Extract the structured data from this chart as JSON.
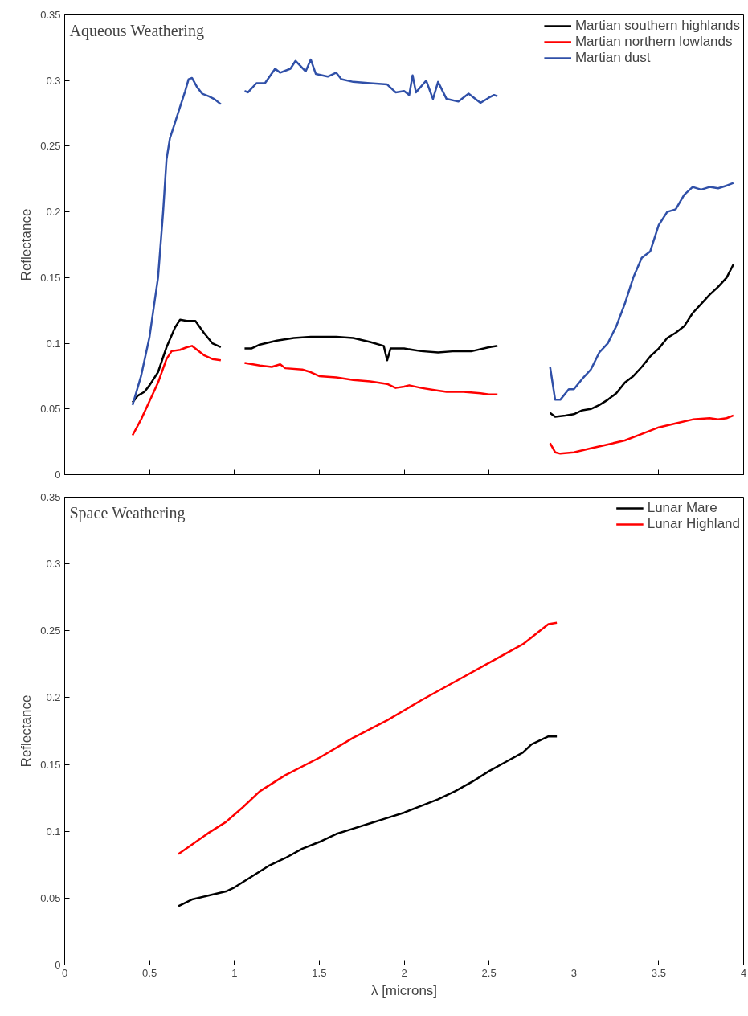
{
  "chart_data": [
    {
      "type": "line",
      "title": "Aqueous Weathering",
      "ylabel": "Reflectance",
      "xlim": [
        0,
        4
      ],
      "ylim": [
        0,
        0.35
      ],
      "xticks": [
        0,
        0.5,
        1,
        1.5,
        2,
        2.5,
        3,
        3.5,
        4
      ],
      "yticks": [
        0,
        0.05,
        0.1,
        0.15,
        0.2,
        0.25,
        0.3,
        0.35
      ],
      "tick_labels": "y",
      "grid": false,
      "legend": "top right",
      "marker": "none",
      "line_style": "solid",
      "series": [
        {
          "name": "Martian southern highlands",
          "color": "#000000",
          "x": [
            0.4,
            0.43,
            0.47,
            0.5,
            0.55,
            0.6,
            0.65,
            0.68,
            0.72,
            0.77,
            0.82,
            0.87,
            0.92,
            0.99,
            1.06,
            1.1,
            1.15,
            1.25,
            1.35,
            1.45,
            1.6,
            1.7,
            1.8,
            1.88,
            1.9,
            1.92,
            2.0,
            2.1,
            2.2,
            2.3,
            2.4,
            2.5,
            2.55,
            2.7,
            2.86,
            2.89,
            2.95,
            3.0,
            3.05,
            3.1,
            3.15,
            3.2,
            3.25,
            3.3,
            3.35,
            3.4,
            3.45,
            3.5,
            3.55,
            3.6,
            3.65,
            3.7,
            3.75,
            3.8,
            3.85,
            3.9,
            3.94
          ],
          "values": [
            0.055,
            0.06,
            0.063,
            0.068,
            0.078,
            0.097,
            0.112,
            0.118,
            0.117,
            0.117,
            0.108,
            0.1,
            0.097,
            null,
            0.096,
            0.096,
            0.099,
            0.102,
            0.104,
            0.105,
            0.105,
            0.104,
            0.101,
            0.098,
            0.087,
            0.096,
            0.096,
            0.094,
            0.093,
            0.094,
            0.094,
            0.097,
            0.098,
            null,
            0.047,
            0.044,
            0.045,
            0.046,
            0.049,
            0.05,
            0.053,
            0.057,
            0.062,
            0.07,
            0.075,
            0.082,
            0.09,
            0.096,
            0.104,
            0.108,
            0.113,
            0.123,
            0.13,
            0.137,
            0.143,
            0.15,
            0.16
          ]
        },
        {
          "name": "Martian northern lowlands",
          "color": "#ff0000",
          "x": [
            0.4,
            0.45,
            0.5,
            0.55,
            0.6,
            0.63,
            0.68,
            0.72,
            0.75,
            0.78,
            0.82,
            0.87,
            0.92,
            0.99,
            1.06,
            1.15,
            1.22,
            1.27,
            1.3,
            1.4,
            1.45,
            1.5,
            1.6,
            1.7,
            1.8,
            1.9,
            1.95,
            2.0,
            2.03,
            2.1,
            2.2,
            2.25,
            2.35,
            2.45,
            2.5,
            2.55,
            2.7,
            2.86,
            2.89,
            2.92,
            3.0,
            3.1,
            3.2,
            3.3,
            3.4,
            3.5,
            3.6,
            3.7,
            3.8,
            3.85,
            3.9,
            3.94
          ],
          "values": [
            0.03,
            0.042,
            0.056,
            0.07,
            0.088,
            0.094,
            0.095,
            0.097,
            0.098,
            0.095,
            0.091,
            0.088,
            0.087,
            null,
            0.085,
            0.083,
            0.082,
            0.084,
            0.081,
            0.08,
            0.078,
            0.075,
            0.074,
            0.072,
            0.071,
            0.069,
            0.066,
            0.067,
            0.068,
            0.066,
            0.064,
            0.063,
            0.063,
            0.062,
            0.061,
            0.061,
            null,
            0.024,
            0.017,
            0.016,
            0.017,
            0.02,
            0.023,
            0.026,
            0.031,
            0.036,
            0.039,
            0.042,
            0.043,
            0.042,
            0.043,
            0.045
          ]
        },
        {
          "name": "Martian dust",
          "color": "#3050a8",
          "x": [
            0.4,
            0.45,
            0.5,
            0.55,
            0.58,
            0.6,
            0.62,
            0.65,
            0.68,
            0.71,
            0.73,
            0.75,
            0.78,
            0.81,
            0.85,
            0.88,
            0.92,
            0.99,
            1.06,
            1.08,
            1.13,
            1.18,
            1.24,
            1.27,
            1.33,
            1.36,
            1.42,
            1.45,
            1.48,
            1.55,
            1.6,
            1.63,
            1.7,
            1.8,
            1.9,
            1.95,
            2.0,
            2.03,
            2.05,
            2.07,
            2.13,
            2.17,
            2.2,
            2.25,
            2.32,
            2.38,
            2.45,
            2.5,
            2.53,
            2.55,
            2.7,
            2.86,
            2.89,
            2.92,
            2.97,
            3.0,
            3.05,
            3.1,
            3.15,
            3.2,
            3.25,
            3.3,
            3.35,
            3.4,
            3.45,
            3.5,
            3.55,
            3.6,
            3.65,
            3.7,
            3.75,
            3.8,
            3.85,
            3.9,
            3.94
          ],
          "values": [
            0.053,
            0.075,
            0.105,
            0.15,
            0.2,
            0.24,
            0.256,
            0.268,
            0.28,
            0.292,
            0.301,
            0.302,
            0.295,
            0.29,
            0.288,
            0.286,
            0.282,
            null,
            0.292,
            0.291,
            0.298,
            0.298,
            0.309,
            0.306,
            0.309,
            0.315,
            0.307,
            0.316,
            0.305,
            0.303,
            0.306,
            0.301,
            0.299,
            0.298,
            0.297,
            0.291,
            0.292,
            0.289,
            0.304,
            0.291,
            0.3,
            0.286,
            0.299,
            0.286,
            0.284,
            0.29,
            0.283,
            0.287,
            0.289,
            0.288,
            null,
            0.082,
            0.057,
            0.057,
            0.065,
            0.065,
            0.073,
            0.08,
            0.093,
            0.1,
            0.113,
            0.13,
            0.15,
            0.165,
            0.17,
            0.19,
            0.2,
            0.202,
            0.213,
            0.219,
            0.217,
            0.219,
            0.218,
            0.22,
            0.222
          ]
        }
      ]
    },
    {
      "type": "line",
      "title": "Space Weathering",
      "xlabel": "λ [microns]",
      "ylabel": "Reflectance",
      "xlim": [
        0,
        4
      ],
      "ylim": [
        0,
        0.35
      ],
      "xticks": [
        0,
        0.5,
        1,
        1.5,
        2,
        2.5,
        3,
        3.5,
        4
      ],
      "yticks": [
        0,
        0.05,
        0.1,
        0.15,
        0.2,
        0.25,
        0.3,
        0.35
      ],
      "grid": false,
      "legend": "top right",
      "marker": "none",
      "line_style": "solid",
      "series": [
        {
          "name": "Lunar Mare",
          "color": "#000000",
          "x": [
            0.67,
            0.75,
            0.85,
            0.95,
            1.0,
            1.1,
            1.2,
            1.3,
            1.4,
            1.5,
            1.6,
            1.7,
            1.8,
            1.9,
            2.0,
            2.1,
            2.2,
            2.3,
            2.4,
            2.5,
            2.6,
            2.7,
            2.75,
            2.8,
            2.85,
            2.9
          ],
          "values": [
            0.044,
            0.049,
            0.052,
            0.055,
            0.058,
            0.066,
            0.074,
            0.08,
            0.087,
            0.092,
            0.098,
            0.102,
            0.106,
            0.11,
            0.114,
            0.119,
            0.124,
            0.13,
            0.137,
            0.145,
            0.152,
            0.159,
            0.165,
            0.168,
            0.171,
            0.171
          ]
        },
        {
          "name": "Lunar Highland",
          "color": "#ff0000",
          "x": [
            0.67,
            0.75,
            0.85,
            0.95,
            1.05,
            1.15,
            1.3,
            1.5,
            1.7,
            1.9,
            2.1,
            2.3,
            2.5,
            2.7,
            2.8,
            2.85,
            2.9
          ],
          "values": [
            0.083,
            0.09,
            0.099,
            0.107,
            0.118,
            0.13,
            0.142,
            0.155,
            0.17,
            0.183,
            0.198,
            0.212,
            0.226,
            0.24,
            0.25,
            0.255,
            0.256
          ]
        }
      ]
    }
  ]
}
